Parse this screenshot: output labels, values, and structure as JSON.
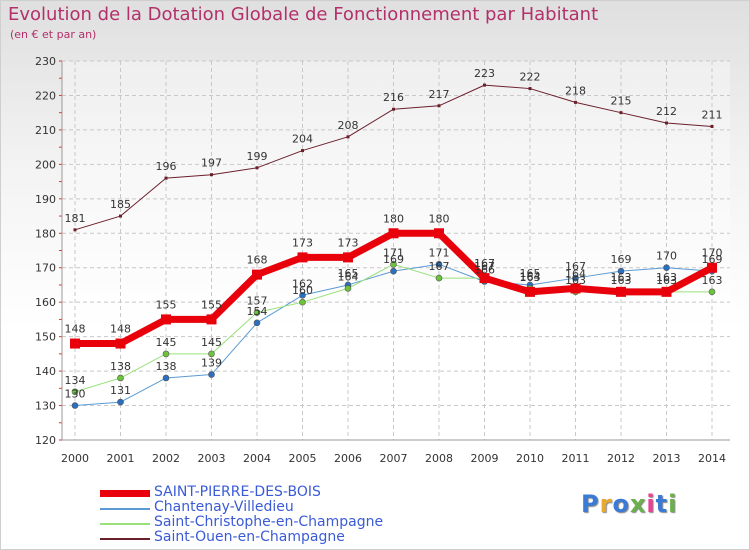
{
  "title": "Evolution de la Dotation Globale de Fonctionnement par Habitant",
  "subtitle": "(en € et par an)",
  "logo": {
    "text": "Proxiti",
    "colors": [
      "#3a7bd5",
      "#e8a92e",
      "#3a7bd5",
      "#6ab04c",
      "#e84393",
      "#3a7bd5",
      "#6ab04c"
    ]
  },
  "chart_data": {
    "type": "line",
    "title": "Evolution de la Dotation Globale de Fonctionnement par Habitant",
    "ylabel": "(en € et par an)",
    "xlabel": "",
    "categories": [
      "2000",
      "2001",
      "2002",
      "2003",
      "2004",
      "2005",
      "2006",
      "2007",
      "2008",
      "2009",
      "2010",
      "2011",
      "2012",
      "2013",
      "2014"
    ],
    "ylim": [
      120,
      230
    ],
    "yticks": [
      120,
      130,
      140,
      150,
      160,
      170,
      180,
      190,
      200,
      210,
      220,
      230
    ],
    "grid": true,
    "series": [
      {
        "name": "Saint-Ouen-en-Champagne",
        "color": "#6b1f2a",
        "width": 1,
        "values": [
          181,
          185,
          196,
          197,
          199,
          204,
          208,
          216,
          217,
          223,
          222,
          218,
          215,
          212,
          211
        ],
        "labels": [
          "181",
          "185",
          "196",
          "197",
          "199",
          "204",
          "208",
          "216",
          "217",
          "223",
          "222",
          "218",
          "215",
          "212",
          "211"
        ]
      },
      {
        "name": "Chantenay-Villedieu",
        "color": "#5a9bd4",
        "width": 1,
        "marker": "#2a6fc0",
        "values": [
          130,
          131,
          138,
          139,
          154,
          162,
          165,
          169,
          171,
          166,
          165,
          167,
          169,
          170,
          169
        ],
        "labels": [
          "130",
          "131",
          "138",
          "139",
          "154",
          "162",
          "165",
          "169",
          "171",
          "166",
          "165",
          "167",
          "169",
          "170",
          "169"
        ]
      },
      {
        "name": "Saint-Christophe-en-Champagne",
        "color": "#9be07a",
        "width": 1,
        "marker": "#6cc43a",
        "values": [
          134,
          138,
          145,
          145,
          157,
          160,
          164,
          171,
          167,
          167,
          164,
          163,
          163,
          163,
          163
        ],
        "labels": [
          "134",
          "138",
          "145",
          "145",
          "157",
          "160",
          "164",
          "171",
          "167",
          "167",
          "164",
          "163",
          "163",
          "163",
          "163"
        ]
      },
      {
        "name": "SAINT-PIERRE-DES-BOIS",
        "color": "#e8000b",
        "width": 7,
        "values": [
          148,
          148,
          155,
          155,
          168,
          173,
          173,
          180,
          180,
          167,
          163,
          164,
          163,
          163,
          170
        ],
        "labels": [
          "148",
          "148",
          "155",
          "155",
          "168",
          "173",
          "173",
          "180",
          "180",
          "167",
          "163",
          "164",
          "163",
          "163",
          "170"
        ]
      }
    ],
    "legend_order": [
      "SAINT-PIERRE-DES-BOIS",
      "Chantenay-Villedieu",
      "Saint-Christophe-en-Champagne",
      "Saint-Ouen-en-Champagne"
    ]
  }
}
